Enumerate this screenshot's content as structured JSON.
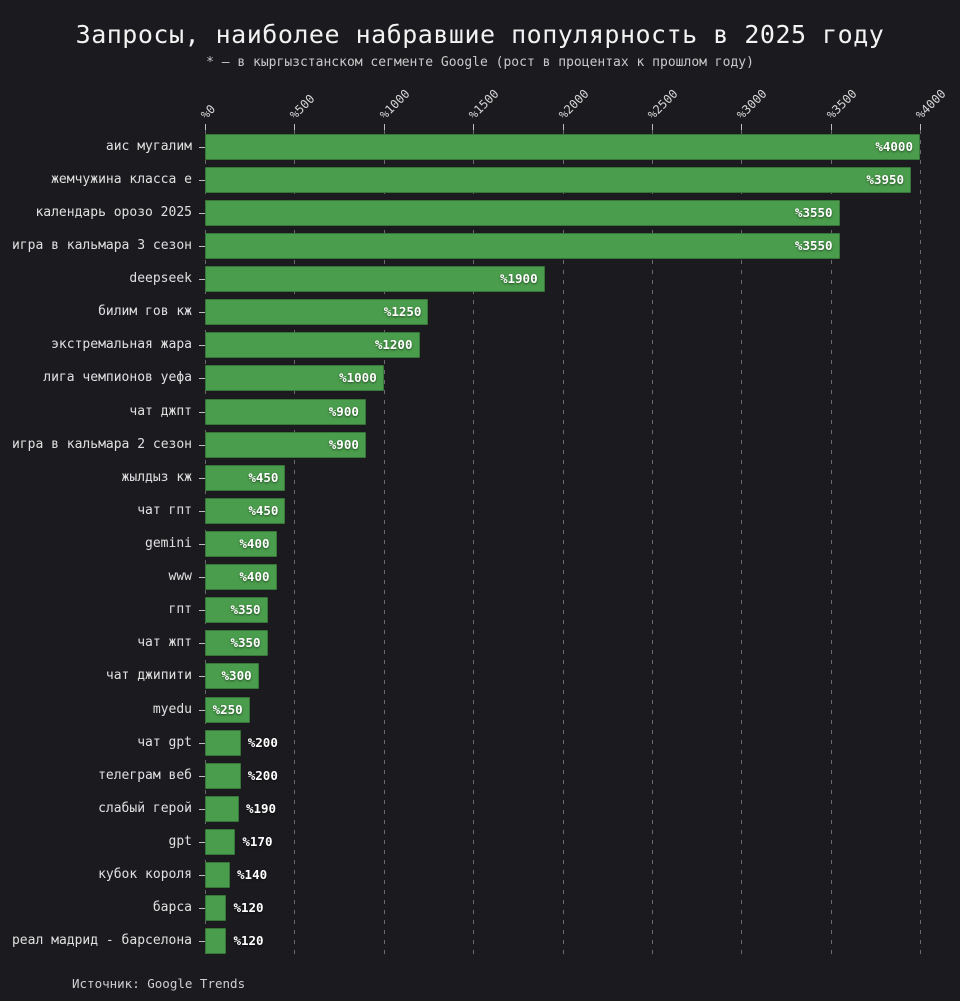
{
  "title": "Запросы, наиболее набравшие популярность в 2025 году",
  "subtitle": "* — в кыргызстанском сегменте Google (рост в процентах к прошлом году)",
  "source": "Источник: Google Trends",
  "colors": {
    "background": "#1b1b1f",
    "bar": "#4a9d4c",
    "title_text": "#f2f2f2",
    "secondary_text": "#c9c9c9",
    "grid": "rgba(255,255,255,0.35)"
  },
  "chart_data": {
    "type": "bar",
    "orientation": "horizontal",
    "title": "Запросы, наиболее набравшие популярность в 2025 году",
    "subtitle": "* — в кыргызстанском сегменте Google (рост в процентах к прошлом году)",
    "xlabel": "",
    "ylabel": "",
    "xlim": [
      0,
      4000
    ],
    "grid": "vertical-dashed",
    "value_label_prefix": "%",
    "tick_values": [
      0,
      500,
      1000,
      1500,
      2000,
      2500,
      3000,
      3500,
      4000
    ],
    "x_ticks": [
      "%0",
      "%500",
      "%1000",
      "%1500",
      "%2000",
      "%2500",
      "%3000",
      "%3500",
      "%4000"
    ],
    "categories": [
      "аис мугалим",
      "жемчужина класса е",
      "календарь орозо 2025",
      "игра в кальмара 3 сезон",
      "deepseek",
      "билим гов кж",
      "экстремальная жара",
      "лига чемпионов уефа",
      "чат джпт",
      "игра в кальмара 2 сезон",
      "жылдыз кж",
      "чат гпт",
      "gemini",
      "www",
      "гпт",
      "чат жпт",
      "чат джипити",
      "myedu",
      "чат gpt",
      "телеграм веб",
      "слабый герой",
      "gpt",
      "кубок короля",
      "барса",
      "реал мадрид - барселона"
    ],
    "values": [
      4000,
      3950,
      3550,
      3550,
      1900,
      1250,
      1200,
      1000,
      900,
      900,
      450,
      450,
      400,
      400,
      350,
      350,
      300,
      250,
      200,
      200,
      190,
      170,
      140,
      120,
      120
    ]
  }
}
